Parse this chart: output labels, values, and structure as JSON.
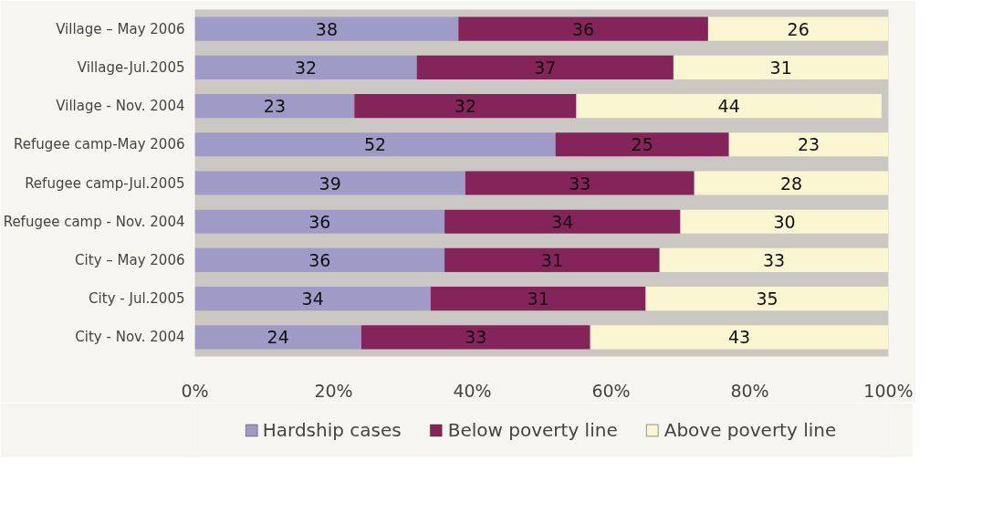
{
  "chart_data": {
    "type": "bar",
    "orientation": "horizontal",
    "stacked": true,
    "categories": [
      "Village – May 2006",
      "Village-Jul.2005",
      "Village - Nov. 2004",
      "Refugee camp-May 2006",
      "Refugee camp-Jul.2005",
      "Refugee camp - Nov. 2004",
      "City – May 2006",
      "City - Jul.2005",
      "City - Nov. 2004"
    ],
    "series": [
      {
        "name": "Hardship cases",
        "color": "#a09ac6",
        "values": [
          38,
          32,
          23,
          52,
          39,
          36,
          36,
          34,
          24
        ]
      },
      {
        "name": "Below poverty line",
        "color": "#85245a",
        "values": [
          36,
          37,
          32,
          25,
          33,
          34,
          31,
          31,
          33
        ]
      },
      {
        "name": "Above poverty line",
        "color": "#fbf6d2",
        "values": [
          26,
          31,
          44,
          23,
          28,
          30,
          33,
          35,
          43
        ]
      }
    ],
    "xlim": [
      0,
      100
    ],
    "xticks": [
      {
        "value": 0,
        "label": "0%"
      },
      {
        "value": 20,
        "label": "20%"
      },
      {
        "value": 40,
        "label": "40%"
      },
      {
        "value": 60,
        "label": "60%"
      },
      {
        "value": 80,
        "label": "80%"
      },
      {
        "value": 100,
        "label": "100%"
      }
    ],
    "data_labels": true,
    "legend": "bottom",
    "grid": false
  }
}
